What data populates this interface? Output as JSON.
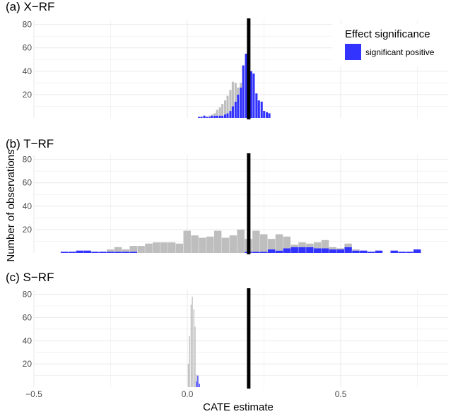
{
  "chart_data": {
    "type": "bar",
    "xlabel": "CATE estimate",
    "ylabel": "Number of observations",
    "xlim": [
      -0.5,
      0.85
    ],
    "ylim": [
      0,
      84
    ],
    "x_ticks": [
      -0.5,
      0.0,
      0.5
    ],
    "x_tick_labels": [
      "−0.5",
      "0.0",
      "0.5"
    ],
    "y_ticks": [
      20,
      40,
      60,
      80
    ],
    "grid": true,
    "reference_line_x": 0.2,
    "legend": {
      "title": "Effect significance",
      "position": "top-right",
      "entries": [
        {
          "label": "significant positive",
          "color": "#3333ff"
        }
      ]
    },
    "colors": {
      "significant": "#3333ff",
      "not_significant": "#bebebe",
      "reference_line": "#000000",
      "grid": "#ebebeb"
    },
    "panels": [
      {
        "title": "(a) X−RF",
        "bin_width": 0.0085,
        "bars": [
          {
            "x": 0.039,
            "sig": 1,
            "ns": 0
          },
          {
            "x": 0.047,
            "sig": 1,
            "ns": 0
          },
          {
            "x": 0.056,
            "sig": 2,
            "ns": 0
          },
          {
            "x": 0.064,
            "sig": 1,
            "ns": 0
          },
          {
            "x": 0.073,
            "sig": 1,
            "ns": 1
          },
          {
            "x": 0.081,
            "sig": 2,
            "ns": 1
          },
          {
            "x": 0.09,
            "sig": 2,
            "ns": 2
          },
          {
            "x": 0.098,
            "sig": 2,
            "ns": 5
          },
          {
            "x": 0.107,
            "sig": 2,
            "ns": 7
          },
          {
            "x": 0.115,
            "sig": 2,
            "ns": 10
          },
          {
            "x": 0.124,
            "sig": 3,
            "ns": 12
          },
          {
            "x": 0.132,
            "sig": 4,
            "ns": 15
          },
          {
            "x": 0.141,
            "sig": 6,
            "ns": 18
          },
          {
            "x": 0.149,
            "sig": 10,
            "ns": 21
          },
          {
            "x": 0.158,
            "sig": 14,
            "ns": 16
          },
          {
            "x": 0.166,
            "sig": 20,
            "ns": 6
          },
          {
            "x": 0.175,
            "sig": 26,
            "ns": 4
          },
          {
            "x": 0.183,
            "sig": 45,
            "ns": 0
          },
          {
            "x": 0.192,
            "sig": 55,
            "ns": 0
          },
          {
            "x": 0.2,
            "sig": 47,
            "ns": 0
          },
          {
            "x": 0.209,
            "sig": 40,
            "ns": 0
          },
          {
            "x": 0.217,
            "sig": 38,
            "ns": 0
          },
          {
            "x": 0.226,
            "sig": 21,
            "ns": 0
          },
          {
            "x": 0.234,
            "sig": 15,
            "ns": 0
          },
          {
            "x": 0.243,
            "sig": 14,
            "ns": 0
          },
          {
            "x": 0.251,
            "sig": 6,
            "ns": 0
          },
          {
            "x": 0.26,
            "sig": 5,
            "ns": 0
          },
          {
            "x": 0.268,
            "sig": 4,
            "ns": 0
          }
        ]
      },
      {
        "title": "(b) T−RF",
        "bin_width": 0.0255,
        "bars": [
          {
            "x": -0.4,
            "sig": 1,
            "ns": 0
          },
          {
            "x": -0.375,
            "sig": 1,
            "ns": 0
          },
          {
            "x": -0.35,
            "sig": 2,
            "ns": 0
          },
          {
            "x": -0.325,
            "sig": 2,
            "ns": 0
          },
          {
            "x": -0.3,
            "sig": 1,
            "ns": 0
          },
          {
            "x": -0.275,
            "sig": 1,
            "ns": 0
          },
          {
            "x": -0.25,
            "sig": 1,
            "ns": 2
          },
          {
            "x": -0.225,
            "sig": 1,
            "ns": 4
          },
          {
            "x": -0.2,
            "sig": 1,
            "ns": 2
          },
          {
            "x": -0.175,
            "sig": 1,
            "ns": 5
          },
          {
            "x": -0.15,
            "sig": 0,
            "ns": 6
          },
          {
            "x": -0.125,
            "sig": 0,
            "ns": 8
          },
          {
            "x": -0.1,
            "sig": 0,
            "ns": 9
          },
          {
            "x": -0.075,
            "sig": 0,
            "ns": 9
          },
          {
            "x": -0.05,
            "sig": 0,
            "ns": 9
          },
          {
            "x": -0.025,
            "sig": 0,
            "ns": 8
          },
          {
            "x": 0.0,
            "sig": 0,
            "ns": 19
          },
          {
            "x": 0.025,
            "sig": 0,
            "ns": 15
          },
          {
            "x": 0.05,
            "sig": 0,
            "ns": 13
          },
          {
            "x": 0.075,
            "sig": 0,
            "ns": 14
          },
          {
            "x": 0.1,
            "sig": 0,
            "ns": 19
          },
          {
            "x": 0.125,
            "sig": 0,
            "ns": 13
          },
          {
            "x": 0.15,
            "sig": 0,
            "ns": 15
          },
          {
            "x": 0.175,
            "sig": 0,
            "ns": 20
          },
          {
            "x": 0.2,
            "sig": 1,
            "ns": 11
          },
          {
            "x": 0.225,
            "sig": 1,
            "ns": 18
          },
          {
            "x": 0.25,
            "sig": 1,
            "ns": 15
          },
          {
            "x": 0.275,
            "sig": 3,
            "ns": 9
          },
          {
            "x": 0.3,
            "sig": 2,
            "ns": 14
          },
          {
            "x": 0.325,
            "sig": 4,
            "ns": 10
          },
          {
            "x": 0.35,
            "sig": 5,
            "ns": 2
          },
          {
            "x": 0.375,
            "sig": 5,
            "ns": 4
          },
          {
            "x": 0.4,
            "sig": 5,
            "ns": 3
          },
          {
            "x": 0.425,
            "sig": 4,
            "ns": 5
          },
          {
            "x": 0.45,
            "sig": 4,
            "ns": 7
          },
          {
            "x": 0.475,
            "sig": 3,
            "ns": 2
          },
          {
            "x": 0.5,
            "sig": 3,
            "ns": 1
          },
          {
            "x": 0.525,
            "sig": 5,
            "ns": 3
          },
          {
            "x": 0.55,
            "sig": 2,
            "ns": 1
          },
          {
            "x": 0.575,
            "sig": 2,
            "ns": 0
          },
          {
            "x": 0.6,
            "sig": 1,
            "ns": 0
          },
          {
            "x": 0.625,
            "sig": 2,
            "ns": 0
          },
          {
            "x": 0.675,
            "sig": 2,
            "ns": 0
          },
          {
            "x": 0.7,
            "sig": 1,
            "ns": 0
          },
          {
            "x": 0.725,
            "sig": 1,
            "ns": 0
          },
          {
            "x": 0.75,
            "sig": 3,
            "ns": 0
          }
        ]
      },
      {
        "title": "(c) S−RF",
        "bin_width": 0.0045,
        "bars": [
          {
            "x": 0.004,
            "sig": 0,
            "ns": 20
          },
          {
            "x": 0.008,
            "sig": 0,
            "ns": 44
          },
          {
            "x": 0.013,
            "sig": 0,
            "ns": 71
          },
          {
            "x": 0.017,
            "sig": 0,
            "ns": 78
          },
          {
            "x": 0.022,
            "sig": 0,
            "ns": 67
          },
          {
            "x": 0.026,
            "sig": 0,
            "ns": 52
          },
          {
            "x": 0.031,
            "sig": 5,
            "ns": 6
          },
          {
            "x": 0.035,
            "sig": 10,
            "ns": 0
          },
          {
            "x": 0.04,
            "sig": 3,
            "ns": 0
          }
        ]
      }
    ]
  }
}
